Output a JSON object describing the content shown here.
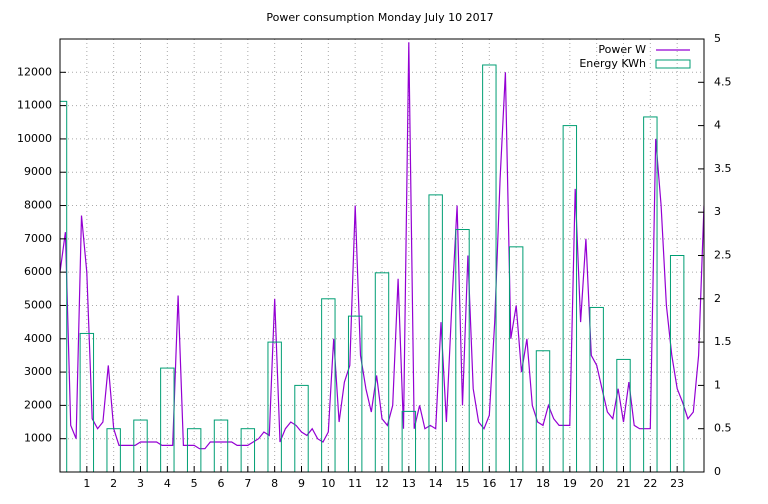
{
  "chart_data": {
    "type": "line",
    "title": "Power consumption Monday July 10 2017",
    "xlim": [
      0,
      24
    ],
    "xticks": [
      1,
      2,
      3,
      4,
      5,
      6,
      7,
      8,
      9,
      10,
      11,
      12,
      13,
      14,
      15,
      16,
      17,
      18,
      19,
      20,
      21,
      22,
      23
    ],
    "ylim": [
      0,
      13000
    ],
    "yticks": [
      1000,
      2000,
      3000,
      4000,
      5000,
      6000,
      7000,
      8000,
      9000,
      10000,
      11000,
      12000
    ],
    "y2lim": [
      0,
      5
    ],
    "y2ticks": [
      0,
      0.5,
      1,
      1.5,
      2,
      2.5,
      3,
      3.5,
      4,
      4.5,
      5
    ],
    "grid": true,
    "legend": "top-right",
    "series": [
      {
        "name": "Power W",
        "color": "#9400d3",
        "x": [
          0,
          0.2,
          0.4,
          0.6,
          0.8,
          1,
          1.2,
          1.4,
          1.6,
          1.8,
          2,
          2.2,
          2.4,
          2.6,
          2.8,
          3,
          3.2,
          3.4,
          3.6,
          3.8,
          4,
          4.2,
          4.4,
          4.6,
          4.8,
          5,
          5.2,
          5.4,
          5.6,
          5.8,
          6,
          6.2,
          6.4,
          6.6,
          6.8,
          7,
          7.2,
          7.4,
          7.6,
          7.8,
          8,
          8.2,
          8.4,
          8.6,
          8.8,
          9,
          9.2,
          9.4,
          9.6,
          9.8,
          10,
          10.2,
          10.4,
          10.6,
          10.8,
          11,
          11.2,
          11.4,
          11.6,
          11.8,
          12,
          12.2,
          12.4,
          12.6,
          12.8,
          13,
          13.2,
          13.4,
          13.6,
          13.8,
          14,
          14.2,
          14.4,
          14.6,
          14.8,
          15,
          15.2,
          15.4,
          15.6,
          15.8,
          16,
          16.2,
          16.4,
          16.6,
          16.8,
          17,
          17.2,
          17.4,
          17.6,
          17.8,
          18,
          18.2,
          18.4,
          18.6,
          18.8,
          19,
          19.2,
          19.4,
          19.6,
          19.8,
          20,
          20.2,
          20.4,
          20.6,
          20.8,
          21,
          21.2,
          21.4,
          21.6,
          21.8,
          22,
          22.2,
          22.4,
          22.6,
          22.8,
          23,
          23.2,
          23.4,
          23.6,
          23.8,
          24
        ],
        "values": [
          6000,
          7200,
          1400,
          1000,
          7700,
          6000,
          1600,
          1300,
          1500,
          3200,
          1300,
          800,
          800,
          800,
          800,
          900,
          900,
          900,
          900,
          800,
          800,
          800,
          5300,
          800,
          800,
          800,
          700,
          700,
          900,
          900,
          900,
          900,
          900,
          800,
          800,
          800,
          900,
          1000,
          1200,
          1100,
          5200,
          900,
          1300,
          1500,
          1400,
          1200,
          1100,
          1300,
          1000,
          900,
          1200,
          4000,
          1500,
          2700,
          3200,
          8000,
          3500,
          2500,
          1800,
          2900,
          1600,
          1400,
          2000,
          5800,
          1300,
          12900,
          1300,
          2000,
          1300,
          1400,
          1300,
          4500,
          1500,
          5000,
          8000,
          2000,
          6500,
          2500,
          1500,
          1300,
          1700,
          4500,
          8800,
          12000,
          4000,
          5000,
          3000,
          4000,
          2000,
          1500,
          1400,
          2000,
          1600,
          1400,
          1400,
          1400,
          8500,
          4500,
          7000,
          3500,
          3200,
          2500,
          1800,
          1600,
          2500,
          1500,
          2700,
          1400,
          1300,
          1300,
          1300,
          10000,
          8000,
          5000,
          3500,
          2500,
          2100,
          1600,
          1800,
          3500,
          8000
        ]
      },
      {
        "name": "Energy KWh",
        "color": "#009e73",
        "axis": "y2",
        "style": "boxes",
        "x": [
          0,
          1,
          2,
          3,
          4,
          5,
          6,
          7,
          8,
          9,
          10,
          11,
          12,
          13,
          14,
          15,
          16,
          17,
          18,
          19,
          20,
          21,
          22,
          23
        ],
        "values": [
          4.28,
          1.6,
          0.5,
          0.6,
          1.2,
          0.5,
          0.6,
          0.5,
          1.5,
          1.0,
          2.0,
          1.8,
          2.3,
          0.7,
          3.2,
          2.8,
          4.7,
          2.6,
          1.4,
          4.0,
          1.9,
          1.3,
          4.1,
          2.5
        ]
      }
    ]
  }
}
